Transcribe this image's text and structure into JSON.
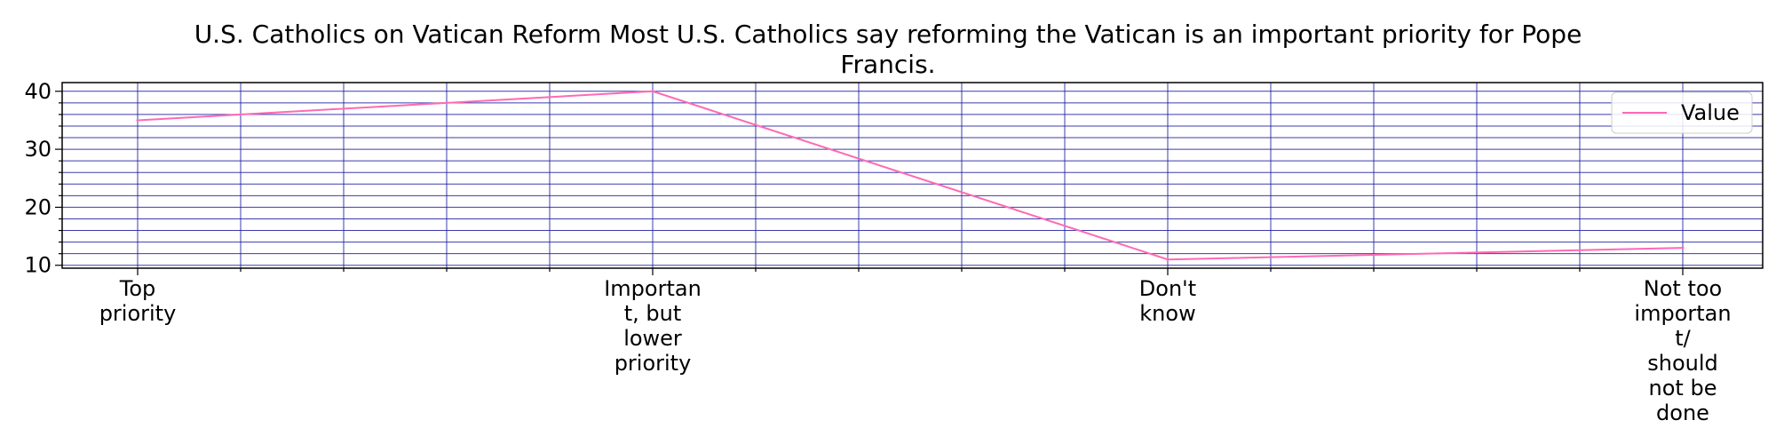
{
  "chart_data": {
    "type": "line",
    "title_lines": [
      "U.S. Catholics on Vatican Reform Most U.S. Catholics say reforming the Vatican is an important priority for Pope",
      "Francis."
    ],
    "categories": [
      [
        "Top",
        "priority"
      ],
      [
        "Importan",
        "t, but",
        "lower",
        "priority"
      ],
      [
        "Don't",
        "know"
      ],
      [
        "Not too",
        "importan",
        "t/",
        "should",
        "not be",
        "done"
      ]
    ],
    "series": [
      {
        "name": "Value",
        "values": [
          35,
          40,
          11,
          13
        ]
      }
    ],
    "xlabel": "",
    "ylabel": "",
    "ylim": [
      9.5,
      41.5
    ],
    "yticks": [
      10,
      20,
      30,
      40
    ],
    "grid": true,
    "legend": "top-right",
    "colors": {
      "line": "#ff69b4",
      "grid": "#1a1aa0",
      "axis": "#000000"
    }
  }
}
